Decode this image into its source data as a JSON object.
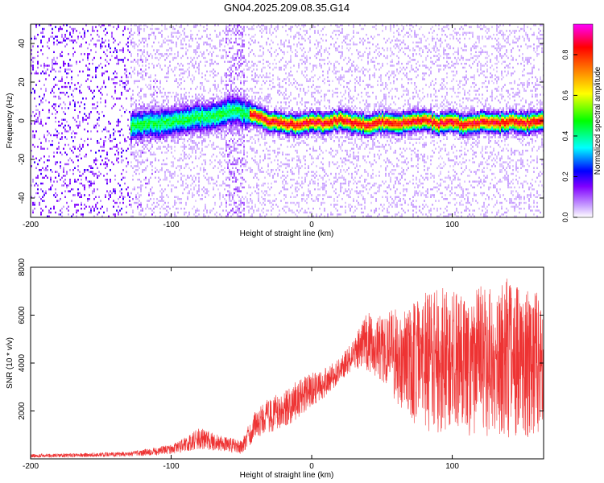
{
  "figure": {
    "title": "GN04.2025.209.08.35.G14"
  },
  "chart_data": [
    {
      "type": "heatmap",
      "title": "GN04.2025.209.08.35.G14",
      "xlabel": "Height of straight line (km)",
      "ylabel": "Frequency (Hz)",
      "xlim": [
        -200,
        165
      ],
      "ylim": [
        -50,
        50
      ],
      "x_ticks": [
        -200,
        -100,
        0,
        100
      ],
      "x_tick_labels": [
        "-200",
        "-100",
        "0",
        "100"
      ],
      "y_ticks": [
        -40,
        -20,
        0,
        20,
        40
      ],
      "y_tick_labels": [
        "-40",
        "-20",
        "0",
        "20",
        "40"
      ],
      "colorbar": {
        "label": "Normalized spectral amplitude",
        "range": [
          0,
          0.95
        ],
        "ticks": [
          0,
          0.2,
          0.4,
          0.6,
          0.8
        ],
        "tick_labels": [
          "0.0",
          "0.2",
          "0.4",
          "0.6",
          "0.8"
        ],
        "colormap": [
          "#ffffff",
          "#8000ff",
          "#0000ff",
          "#00ffff",
          "#00ff00",
          "#ffff00",
          "#ff8000",
          "#ff0000",
          "#ff00ff"
        ]
      },
      "ridge": {
        "x": [
          -130,
          -110,
          -90,
          -70,
          -55,
          -48,
          -40,
          -30,
          -20,
          -10,
          0,
          10,
          20,
          30,
          40,
          50,
          60,
          70,
          80,
          90,
          100,
          110,
          120,
          130,
          140,
          150,
          160,
          165
        ],
        "freq": [
          -2,
          -1,
          1,
          3,
          6,
          4,
          3,
          0,
          -1,
          -2,
          0,
          -1,
          1,
          -1,
          -2,
          0,
          -1,
          0,
          1,
          -1,
          0,
          -2,
          0,
          -1,
          0,
          -1,
          0,
          0
        ]
      },
      "grid": false
    },
    {
      "type": "line",
      "xlabel": "Height of straight line (km)",
      "ylabel": "SNR (10 * v/v)",
      "xlim": [
        -200,
        165
      ],
      "ylim": [
        0,
        8000
      ],
      "x_ticks": [
        -200,
        -100,
        0,
        100
      ],
      "x_tick_labels": [
        "-200",
        "-100",
        "0",
        "100"
      ],
      "y_ticks": [
        2000,
        4000,
        6000,
        8000
      ],
      "y_tick_labels": [
        "2000",
        "4000",
        "6000",
        "8000"
      ],
      "color": "#ee3333",
      "envelope": {
        "x": [
          -200,
          -160,
          -130,
          -110,
          -100,
          -90,
          -80,
          -70,
          -60,
          -50,
          -40,
          -30,
          -20,
          -10,
          0,
          10,
          20,
          30,
          40,
          50,
          60,
          70,
          80,
          90,
          100,
          110,
          120,
          130,
          140,
          150,
          160,
          165
        ],
        "low": [
          50,
          80,
          100,
          150,
          200,
          300,
          400,
          350,
          300,
          200,
          800,
          1100,
          1300,
          1600,
          2200,
          2600,
          3200,
          3800,
          3600,
          3200,
          2400,
          1500,
          1200,
          1000,
          1300,
          900,
          800,
          1100,
          900,
          800,
          900,
          1400
        ],
        "high": [
          200,
          250,
          300,
          500,
          600,
          900,
          1300,
          1100,
          900,
          800,
          2000,
          2600,
          2800,
          3300,
          3600,
          3800,
          4200,
          5000,
          6200,
          6000,
          6300,
          6500,
          7000,
          7200,
          7000,
          6800,
          7300,
          7000,
          7600,
          7200,
          7000,
          6500
        ]
      },
      "grid": false
    }
  ]
}
